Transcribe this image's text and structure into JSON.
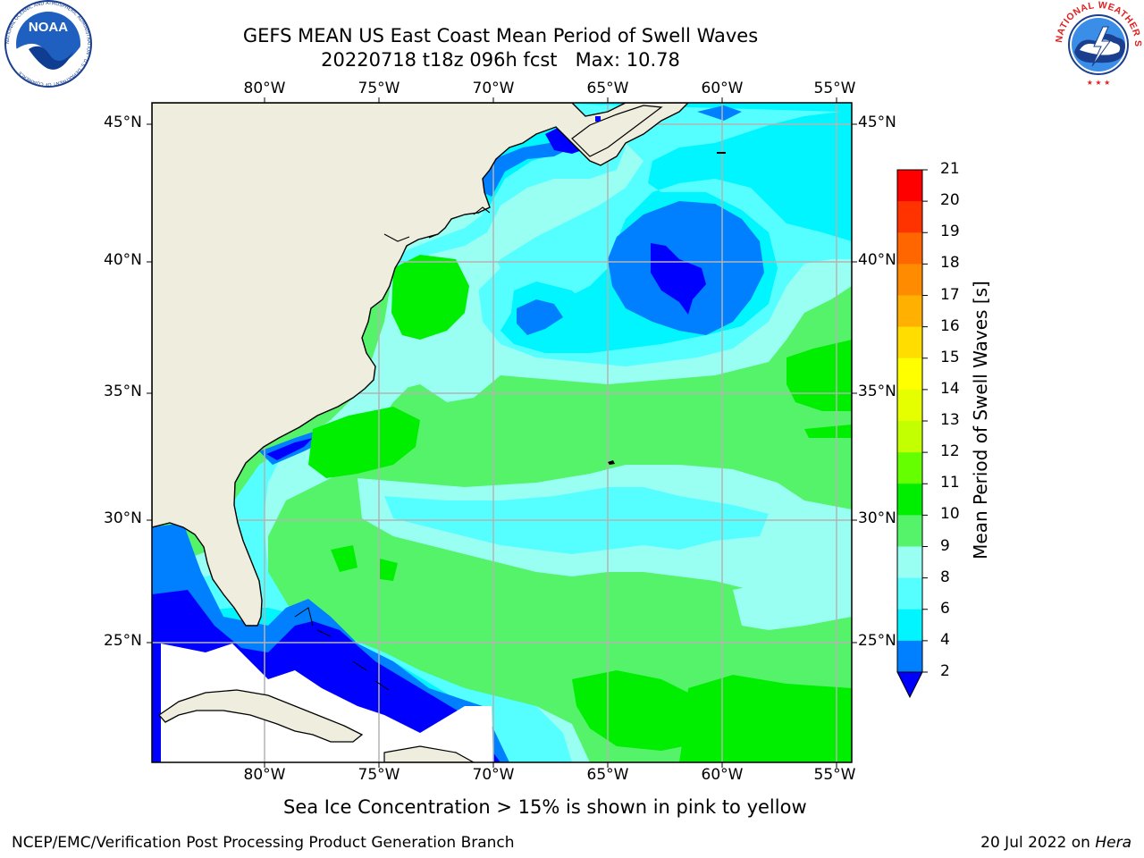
{
  "header": {
    "title_line1": "GEFS MEAN US East Coast Mean Period of Swell Waves",
    "title_line2": "20220718 t18z 096h fcst   Max: 10.78"
  },
  "logos": {
    "left": "NOAA",
    "left_ring_text": "NATIONAL OCEANIC AND ATMOSPHERIC ADMINISTRATION · U.S. DEPARTMENT OF COMMERCE",
    "right_ring_text": "NATIONAL WEATHER SERVICE"
  },
  "map": {
    "lon_labels": [
      "80°W",
      "75°W",
      "70°W",
      "65°W",
      "60°W",
      "55°W"
    ],
    "lat_labels": [
      "45°N",
      "40°N",
      "35°N",
      "30°N",
      "25°N"
    ],
    "colors": {
      "land": "#efeddd",
      "no_data": "#ffffff",
      "grid": "#b4b4b4",
      "coast": "#000000"
    }
  },
  "colorbar": {
    "title": "Mean Period of Swell Waves [s]",
    "ticks": [
      "21",
      "20",
      "19",
      "18",
      "17",
      "16",
      "15",
      "14",
      "13",
      "12",
      "11",
      "10",
      "9",
      "8",
      "6",
      "4",
      "2"
    ],
    "bins": [
      {
        "range": "20-21",
        "color": "#ff0000"
      },
      {
        "range": "19-20",
        "color": "#ff3300"
      },
      {
        "range": "18-19",
        "color": "#ff6600"
      },
      {
        "range": "17-18",
        "color": "#ff8c00"
      },
      {
        "range": "16-17",
        "color": "#ffb000"
      },
      {
        "range": "15-16",
        "color": "#ffdd00"
      },
      {
        "range": "14-15",
        "color": "#ffff00"
      },
      {
        "range": "13-14",
        "color": "#e6ff00"
      },
      {
        "range": "12-13",
        "color": "#c3ff00"
      },
      {
        "range": "11-12",
        "color": "#66ff00"
      },
      {
        "range": "10-11",
        "color": "#00ee00"
      },
      {
        "range": "9-10",
        "color": "#55f36a"
      },
      {
        "range": "8-9",
        "color": "#99fff3"
      },
      {
        "range": "6-8",
        "color": "#55ffff"
      },
      {
        "range": "4-6",
        "color": "#00f5ff"
      },
      {
        "range": "2-4",
        "color": "#0080ff"
      },
      {
        "range": "<2",
        "color": "#0000ff"
      }
    ]
  },
  "footer": {
    "ice_note": "Sea Ice Concentration > 15% is shown in pink to yellow",
    "credit": "NCEP/EMC/Verification Post Processing Product Generation Branch",
    "date": "20 Jul 2022 on",
    "machine": "Hera"
  }
}
